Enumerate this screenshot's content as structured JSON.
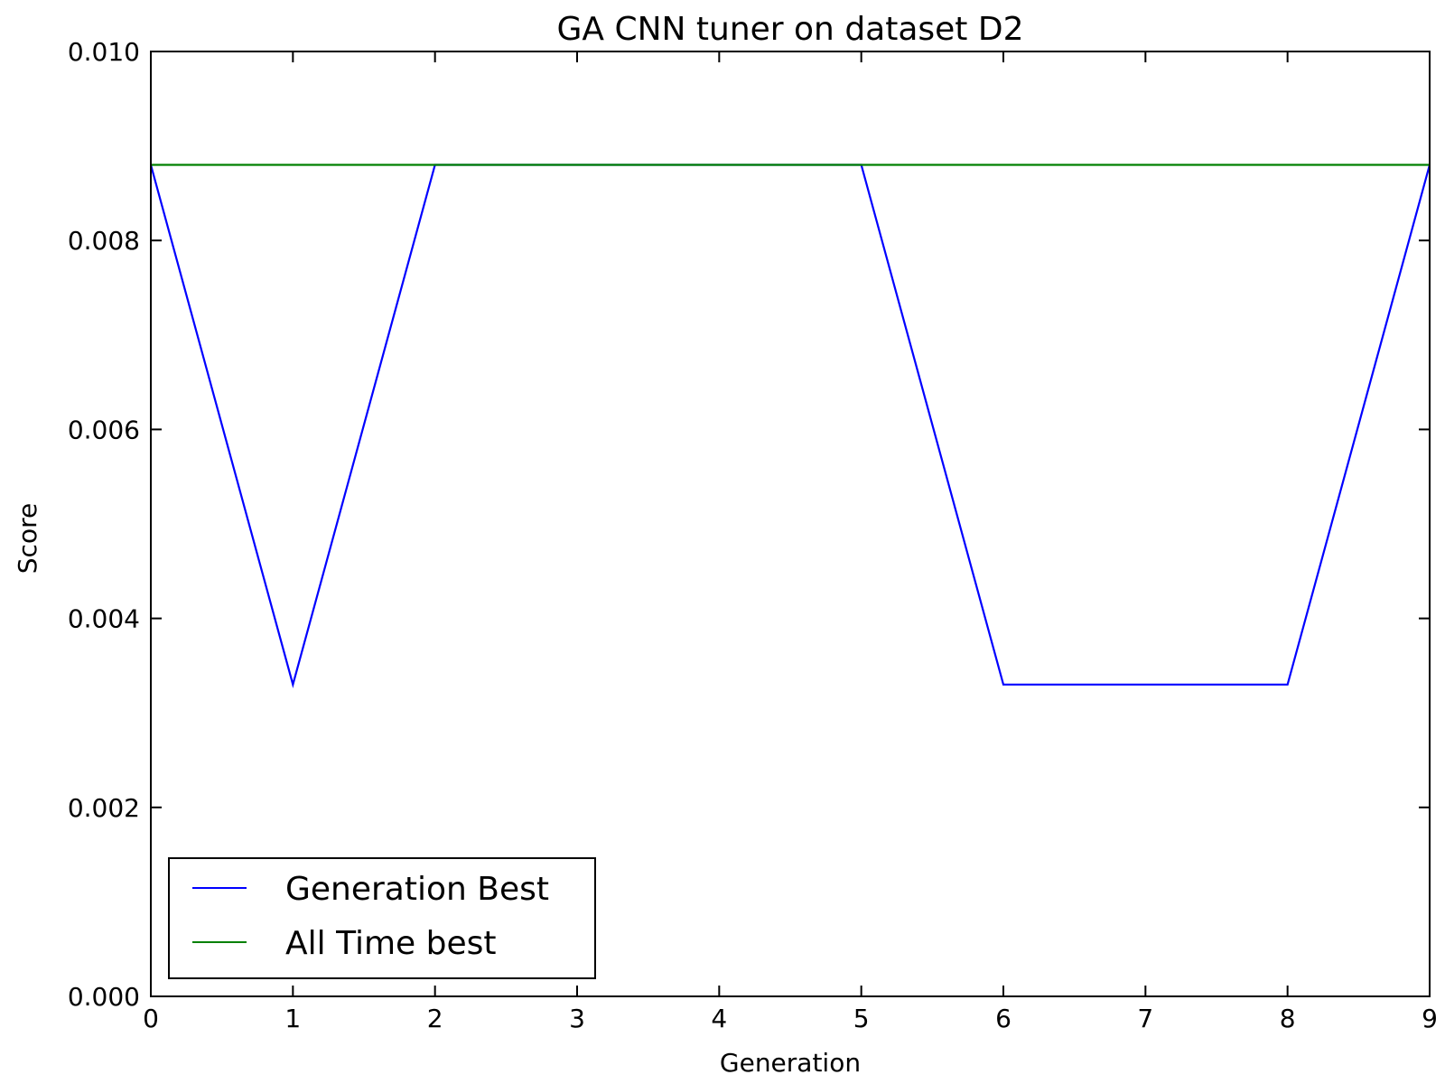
{
  "chart_data": {
    "type": "line",
    "title": "GA CNN tuner on dataset D2",
    "xlabel": "Generation",
    "ylabel": "Score",
    "xlim": [
      0,
      9
    ],
    "ylim": [
      0,
      0.01
    ],
    "x": [
      0,
      1,
      2,
      3,
      4,
      5,
      6,
      7,
      8,
      9
    ],
    "x_ticks": [
      "0",
      "1",
      "2",
      "3",
      "4",
      "5",
      "6",
      "7",
      "8",
      "9"
    ],
    "y_ticks": [
      "0.000",
      "0.002",
      "0.004",
      "0.006",
      "0.008",
      "0.010"
    ],
    "series": [
      {
        "name": "Generation Best",
        "color": "#0000ff",
        "values": [
          0.0088,
          0.0033,
          0.0088,
          0.0088,
          0.0088,
          0.0088,
          0.0033,
          0.0033,
          0.0033,
          0.0088
        ]
      },
      {
        "name": "All Time best",
        "color": "#008000",
        "values": [
          0.0088,
          0.0088,
          0.0088,
          0.0088,
          0.0088,
          0.0088,
          0.0088,
          0.0088,
          0.0088,
          0.0088
        ]
      }
    ],
    "legend": "lower-left",
    "grid": false
  }
}
